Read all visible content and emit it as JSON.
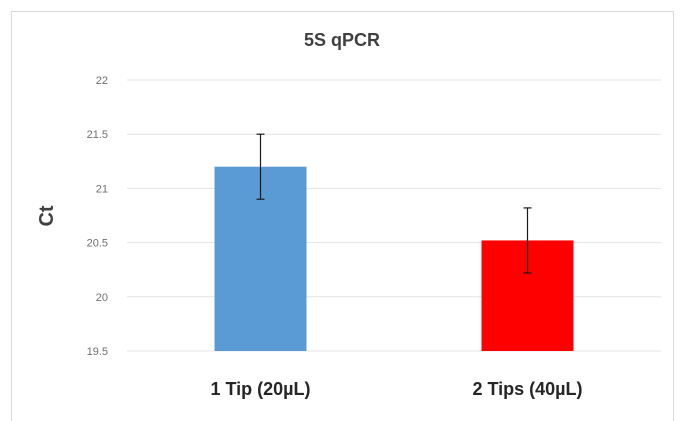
{
  "chart_data": {
    "type": "bar",
    "title": "5S qPCR",
    "xlabel": "",
    "ylabel": "Ct",
    "categories": [
      "1 Tip (20µL)",
      "2 Tips (40µL)"
    ],
    "values": [
      21.2,
      20.52
    ],
    "error": [
      0.3,
      0.3
    ],
    "colors": [
      "#5b9bd5",
      "#ff0000"
    ],
    "ylim": [
      19.5,
      22
    ],
    "yticks": [
      19.5,
      20,
      20.5,
      21,
      21.5,
      22
    ],
    "ytick_labels": [
      "19.5",
      "20",
      "20.5",
      "21",
      "21.5",
      "22"
    ],
    "grid": true,
    "legend": "none"
  }
}
